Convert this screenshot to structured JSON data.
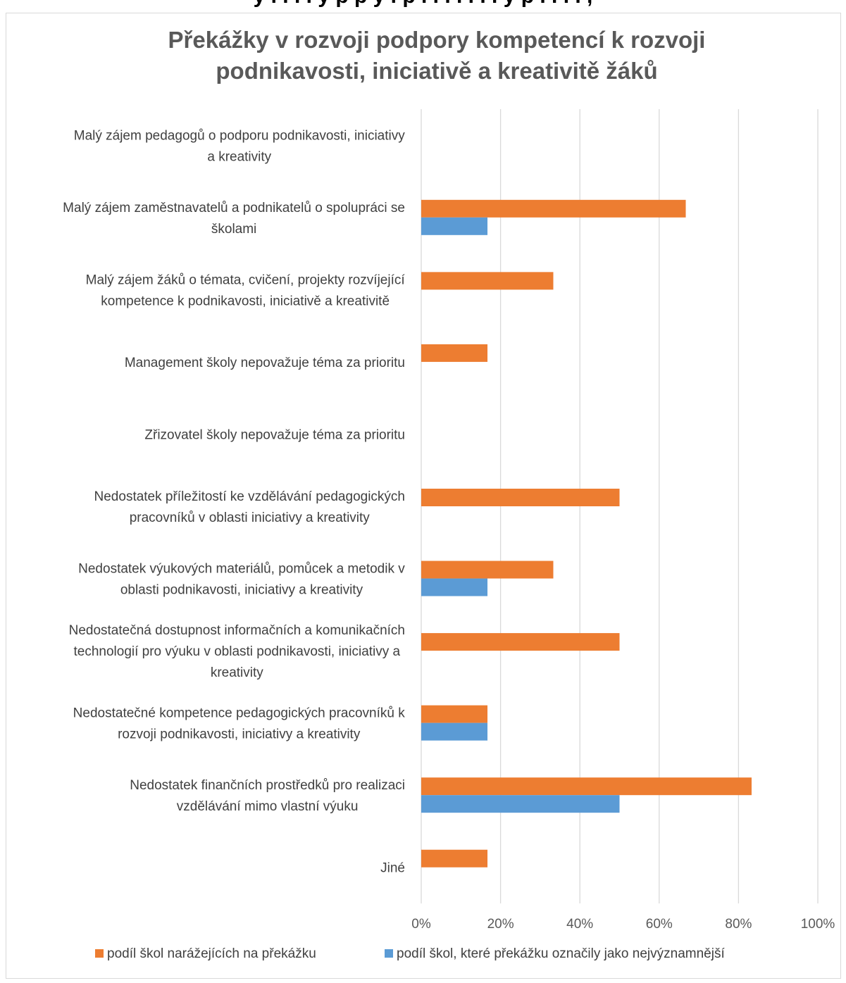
{
  "clipped_heading": "y . . . . y p p y . p . . . . . . . y p . . . . ,",
  "chart_data": {
    "type": "bar",
    "orientation": "horizontal",
    "title": "Překážky v rozvoji podpory kompetencí k rozvoji podnikavosti, iniciativě a kreativitě žáků",
    "title_lines": [
      "Překážky v rozvoji podpory kompetencí k rozvoji",
      "podnikavosti, iniciativě a kreativitě žáků"
    ],
    "categories": [
      [
        "Malý zájem pedagogů o podporu podnikavosti, iniciativy",
        "a kreativity"
      ],
      [
        "Malý zájem zaměstnavatelů a podnikatelů o spolupráci se",
        "školami"
      ],
      [
        "Malý zájem žáků o témata, cvičení, projekty rozvíjející",
        "kompetence k podnikavosti, iniciativě a kreativitě"
      ],
      [
        "Management školy nepovažuje téma za prioritu"
      ],
      [
        "Zřizovatel školy nepovažuje téma za prioritu"
      ],
      [
        "Nedostatek příležitostí ke vzdělávání pedagogických",
        "pracovníků v oblasti iniciativy a kreativity"
      ],
      [
        "Nedostatek výukových materiálů, pomůcek a metodik v",
        "oblasti podnikavosti, iniciativy a kreativity"
      ],
      [
        "Nedostatečná dostupnost informačních a komunikačních",
        "technologií pro výuku v oblasti podnikavosti, iniciativy a",
        "kreativity"
      ],
      [
        "Nedostatečné kompetence pedagogických pracovníků k",
        "rozvoji podnikavosti, iniciativy a kreativity"
      ],
      [
        "Nedostatek finančních prostředků pro realizaci",
        "vzdělávání mimo vlastní výuku"
      ],
      [
        "Jiné"
      ]
    ],
    "series": [
      {
        "name": "podíl škol narážejících na překážku",
        "color": "#ed7d31",
        "values": [
          0,
          0.667,
          0.333,
          0.167,
          0,
          0.5,
          0.333,
          0.5,
          0.167,
          0.833,
          0.167
        ]
      },
      {
        "name": "podíl škol, které překážku označily jako nejvýznamnější",
        "color": "#5b9bd5",
        "values": [
          0,
          0.167,
          0,
          0,
          0,
          0,
          0.167,
          0,
          0.167,
          0.5,
          0
        ]
      }
    ],
    "xlim": [
      0,
      1
    ],
    "xticks": [
      0,
      0.2,
      0.4,
      0.6,
      0.8,
      1
    ],
    "xtick_labels": [
      "0%",
      "20%",
      "40%",
      "60%",
      "80%",
      "100%"
    ],
    "grid": "vertical",
    "legend_position": "bottom"
  }
}
